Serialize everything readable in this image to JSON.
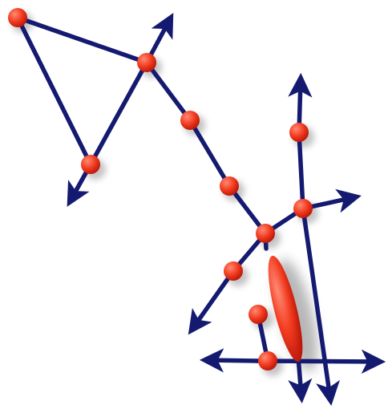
{
  "colors": {
    "background": "#ffffff",
    "edge": "#141a70",
    "node_light": "#ff8a74",
    "node": "#f23b1f",
    "node_dark": "#b8160a",
    "shadow": "#7d7d7d"
  },
  "diagram": {
    "kind": "node-link graph with arrows",
    "node_count": 12,
    "has_text_labels": false,
    "has_elongated_blob": true
  }
}
